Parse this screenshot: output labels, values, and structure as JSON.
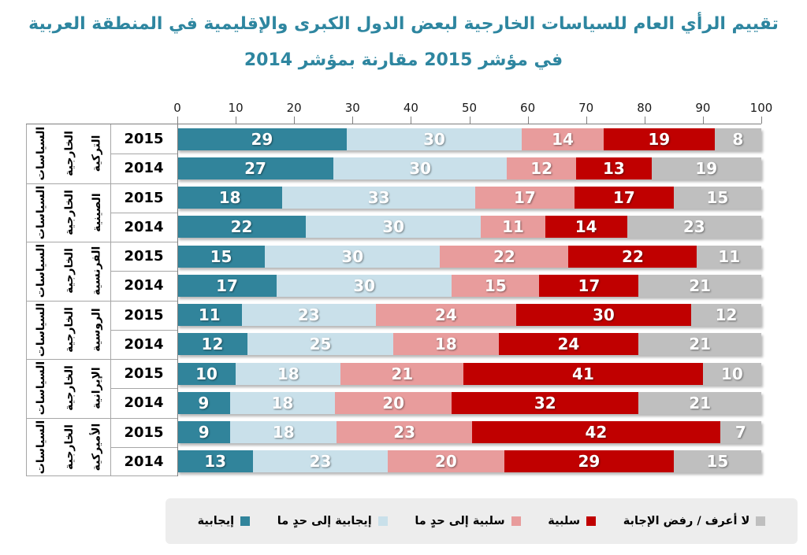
{
  "title": {
    "line1": "تقييم الرأي العام للسياسات الخارجية لبعض الدول الكبرى والإقليمية في المنطقة العربية",
    "line2": "في مؤشر 2015 مقارنة بمؤشر 2014"
  },
  "axis": {
    "min": 0,
    "max": 100,
    "ticks": [
      0,
      10,
      20,
      30,
      40,
      50,
      60,
      70,
      80,
      90,
      100
    ]
  },
  "colors": {
    "positive": "#31849B",
    "somewhat_positive": "#C9E0EA",
    "somewhat_negative": "#E89C9C",
    "negative": "#C00000",
    "dont_know": "#BFBFBF",
    "title_text": "#2E86A0",
    "grid_border": "#A6A6A6",
    "axis_line": "#7F7F7F",
    "legend_bg": "#EDEDED"
  },
  "legend": {
    "items": [
      {
        "label": "إيجابية",
        "color": "#31849B"
      },
      {
        "label": "إيجابية إلى حدٍ ما",
        "color": "#C9E0EA"
      },
      {
        "label": "سلبية إلى حدٍ ما",
        "color": "#E89C9C"
      },
      {
        "label": "سلبية",
        "color": "#C00000"
      },
      {
        "label": "لا أعرف / رفض الإجابة",
        "color": "#BFBFBF"
      }
    ]
  },
  "groups": [
    {
      "country": "التركية",
      "label_words": [
        "السياسات",
        "الخارجية",
        "التركية"
      ],
      "rows": [
        {
          "year": "2015",
          "values": [
            29,
            30,
            14,
            19,
            8
          ]
        },
        {
          "year": "2014",
          "values": [
            27,
            30,
            12,
            13,
            19
          ]
        }
      ]
    },
    {
      "country": "الصينية",
      "label_words": [
        "السياسات",
        "الخارجية",
        "الصينية"
      ],
      "rows": [
        {
          "year": "2015",
          "values": [
            18,
            33,
            17,
            17,
            15
          ]
        },
        {
          "year": "2014",
          "values": [
            22,
            30,
            11,
            14,
            23
          ]
        }
      ]
    },
    {
      "country": "الفرنسية",
      "label_words": [
        "السياسات",
        "الخارجية",
        "الفرنسية"
      ],
      "rows": [
        {
          "year": "2015",
          "values": [
            15,
            30,
            22,
            22,
            11
          ]
        },
        {
          "year": "2014",
          "values": [
            17,
            30,
            15,
            17,
            21
          ]
        }
      ]
    },
    {
      "country": "الروسية",
      "label_words": [
        "السياسات",
        "الخارجية",
        "الروسية"
      ],
      "rows": [
        {
          "year": "2015",
          "values": [
            11,
            23,
            24,
            30,
            12
          ]
        },
        {
          "year": "2014",
          "values": [
            12,
            25,
            18,
            24,
            21
          ]
        }
      ]
    },
    {
      "country": "الإيرانية",
      "label_words": [
        "السياسات",
        "الخارجية",
        "الإيرانية"
      ],
      "rows": [
        {
          "year": "2015",
          "values": [
            10,
            18,
            21,
            41,
            10
          ]
        },
        {
          "year": "2014",
          "values": [
            9,
            18,
            20,
            32,
            21
          ]
        }
      ]
    },
    {
      "country": "الأميركية",
      "label_words": [
        "السياسات",
        "الخارجية",
        "الأميركية"
      ],
      "rows": [
        {
          "year": "2015",
          "values": [
            9,
            18,
            23,
            42,
            7
          ]
        },
        {
          "year": "2014",
          "values": [
            13,
            23,
            20,
            29,
            15
          ]
        }
      ]
    }
  ],
  "chart_data": {
    "type": "bar",
    "variant": "horizontal_stacked",
    "title": "تقييم الرأي العام للسياسات الخارجية لبعض الدول الكبرى والإقليمية في المنطقة العربية في مؤشر 2015 مقارنة بمؤشر 2014",
    "xlabel": "",
    "ylabel": "",
    "xlim": [
      0,
      100
    ],
    "grid": false,
    "legend_position": "bottom",
    "categories": [
      "السياسات الخارجية التركية 2015",
      "السياسات الخارجية التركية 2014",
      "السياسات الخارجية الصينية 2015",
      "السياسات الخارجية الصينية 2014",
      "السياسات الخارجية الفرنسية 2015",
      "السياسات الخارجية الفرنسية 2014",
      "السياسات الخارجية الروسية 2015",
      "السياسات الخارجية الروسية 2014",
      "السياسات الخارجية الإيرانية 2015",
      "السياسات الخارجية الإيرانية 2014",
      "السياسات الخارجية الأميركية 2015",
      "السياسات الخارجية الأميركية 2014"
    ],
    "series": [
      {
        "name": "إيجابية",
        "color": "#31849B",
        "values": [
          29,
          27,
          18,
          22,
          15,
          17,
          11,
          12,
          10,
          9,
          9,
          13
        ]
      },
      {
        "name": "إيجابية إلى حدٍ ما",
        "color": "#C9E0EA",
        "values": [
          30,
          30,
          33,
          30,
          30,
          30,
          23,
          25,
          18,
          18,
          18,
          23
        ]
      },
      {
        "name": "سلبية إلى حدٍ ما",
        "color": "#E89C9C",
        "values": [
          14,
          12,
          17,
          11,
          22,
          15,
          24,
          18,
          21,
          20,
          23,
          20
        ]
      },
      {
        "name": "سلبية",
        "color": "#C00000",
        "values": [
          19,
          13,
          17,
          14,
          22,
          17,
          30,
          24,
          41,
          32,
          42,
          29
        ]
      },
      {
        "name": "لا أعرف / رفض الإجابة",
        "color": "#BFBFBF",
        "values": [
          8,
          19,
          15,
          23,
          11,
          21,
          12,
          21,
          10,
          21,
          7,
          15
        ]
      }
    ]
  }
}
